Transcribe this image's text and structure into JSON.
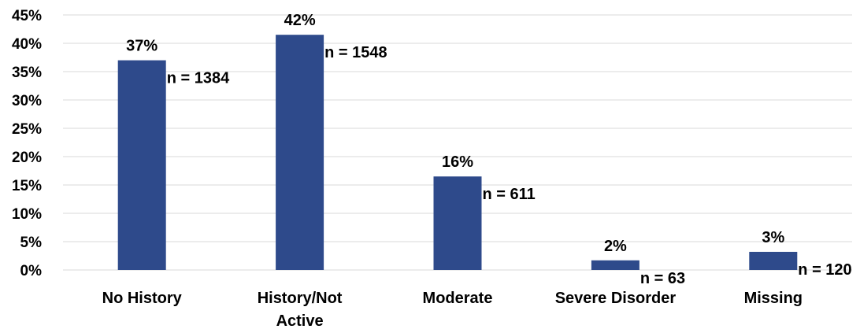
{
  "chart_data": {
    "type": "bar",
    "categories": [
      "No History",
      "History/Not Active",
      "Moderate",
      "Severe Disorder",
      "Missing"
    ],
    "category_lines": [
      [
        "No History"
      ],
      [
        "History/Not",
        "Active"
      ],
      [
        "Moderate"
      ],
      [
        "Severe Disorder"
      ],
      [
        "Missing"
      ]
    ],
    "values": [
      37,
      41.5,
      16.5,
      1.7,
      3.2
    ],
    "value_labels": [
      "37%",
      "42%",
      "16%",
      "2%",
      "3%"
    ],
    "n_labels": [
      "n = 1384",
      "n = 1548",
      "n = 611",
      "n = 63",
      "n = 120"
    ],
    "title": "",
    "xlabel": "",
    "ylabel": "",
    "ylim": [
      0,
      45
    ],
    "yticks": [
      0,
      5,
      10,
      15,
      20,
      25,
      30,
      35,
      40,
      45
    ],
    "ytick_labels": [
      "0%",
      "5%",
      "10%",
      "15%",
      "20%",
      "25%",
      "30%",
      "35%",
      "40%",
      "45%"
    ],
    "grid": true,
    "bar_color": "#2e4a8b",
    "grid_color": "#d9d9d9"
  }
}
